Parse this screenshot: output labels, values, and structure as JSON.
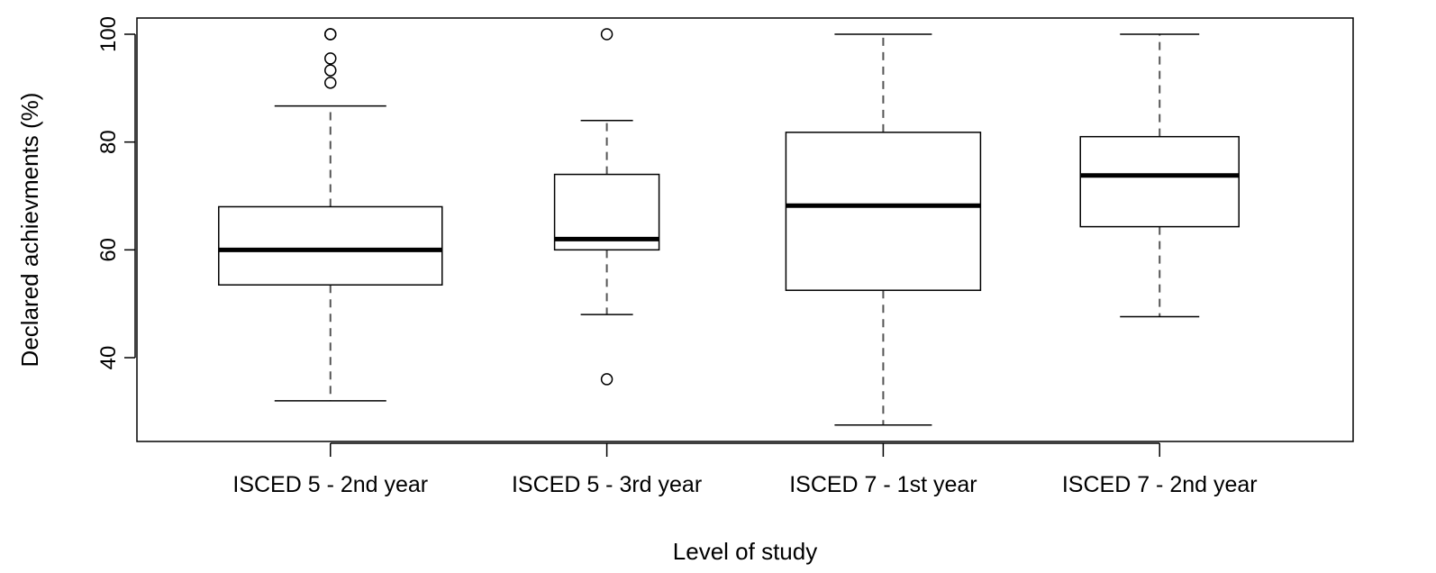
{
  "chart_data": {
    "type": "boxplot",
    "title": "",
    "xlabel": "Level of study",
    "ylabel": "Declared achievments (%)",
    "ylim": [
      25,
      103
    ],
    "yticks": [
      40,
      60,
      80,
      100
    ],
    "grid": false,
    "legend": "none",
    "categories": [
      "ISCED 5 - 2nd year",
      "ISCED 5 - 3rd year",
      "ISCED 7 - 1st year",
      "ISCED 7 - 2nd year"
    ],
    "boxes": [
      {
        "category": "ISCED 5 - 2nd year",
        "whisker_low": 32,
        "q1": 53.5,
        "median": 60,
        "q3": 68,
        "whisker_high": 86.7,
        "outliers": [
          91,
          93.3,
          95.5,
          100,
          100
        ]
      },
      {
        "category": "ISCED 5 - 3rd year",
        "whisker_low": 48,
        "q1": 60,
        "median": 62,
        "q3": 74,
        "whisker_high": 84,
        "outliers": [
          36,
          100
        ]
      },
      {
        "category": "ISCED 7 - 1st year",
        "whisker_low": 27.5,
        "q1": 52.5,
        "median": 68.2,
        "q3": 81.8,
        "whisker_high": 100,
        "outliers": []
      },
      {
        "category": "ISCED 7 - 2nd year",
        "whisker_low": 47.6,
        "q1": 64.3,
        "median": 73.8,
        "q3": 81,
        "whisker_high": 100,
        "outliers": []
      }
    ],
    "colors": {
      "box_fill": "#ffffff",
      "stroke": "#000000",
      "whisker": "#555555"
    }
  }
}
